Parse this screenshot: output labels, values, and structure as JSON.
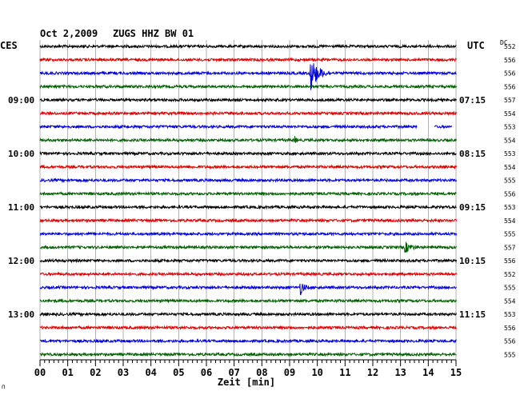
{
  "header": {
    "date": "Oct 2,2009",
    "station": "ZUGS HHZ BW 01",
    "left_tz": "CES",
    "right_tz": "UTC",
    "dc_label": "DC"
  },
  "chart_data": {
    "type": "seismogram",
    "xlabel": "Zeit [min]",
    "x_ticks": [
      "00",
      "01",
      "02",
      "03",
      "04",
      "05",
      "06",
      "07",
      "08",
      "09",
      "10",
      "11",
      "12",
      "13",
      "14",
      "15"
    ],
    "xlim": [
      0,
      15
    ],
    "minutes_per_trace": 15,
    "trace_color_cycle": [
      "#000000",
      "#e00000",
      "#0000e0",
      "#006000"
    ],
    "left_hour_labels": [
      {
        "trace": 4,
        "text": "09:00"
      },
      {
        "trace": 8,
        "text": "10:00"
      },
      {
        "trace": 12,
        "text": "11:00"
      },
      {
        "trace": 16,
        "text": "12:00"
      },
      {
        "trace": 20,
        "text": "13:00"
      }
    ],
    "right_hour_labels": [
      {
        "trace": 4,
        "text": "07:15"
      },
      {
        "trace": 8,
        "text": "08:15"
      },
      {
        "trace": 12,
        "text": "09:15"
      },
      {
        "trace": 16,
        "text": "10:15"
      },
      {
        "trace": 20,
        "text": "11:15"
      }
    ],
    "dc_values": [
      "552",
      "556",
      "556",
      "556",
      "557",
      "554",
      "553",
      "554",
      "553",
      "554",
      "555",
      "556",
      "553",
      "554",
      "555",
      "557",
      "556",
      "552",
      "555",
      "554",
      "553",
      "556",
      "556",
      "555"
    ],
    "events": [
      {
        "trace": 2,
        "minute": 9.75,
        "amplitude": 3.0,
        "duration_min": 0.7
      },
      {
        "trace": 18,
        "minute": 9.4,
        "amplitude": 1.2,
        "duration_min": 0.3
      },
      {
        "trace": 15,
        "minute": 13.2,
        "amplitude": 0.8,
        "duration_min": 0.5
      },
      {
        "trace": 7,
        "minute": 9.2,
        "amplitude": 0.5,
        "duration_min": 0.1
      }
    ],
    "gaps": [
      {
        "trace": 6,
        "from_minute": 13.6,
        "to_minute": 14.2
      },
      {
        "trace": 6,
        "from_minute": 14.85,
        "to_minute": 15.0
      }
    ]
  },
  "footer_mark": "∩"
}
